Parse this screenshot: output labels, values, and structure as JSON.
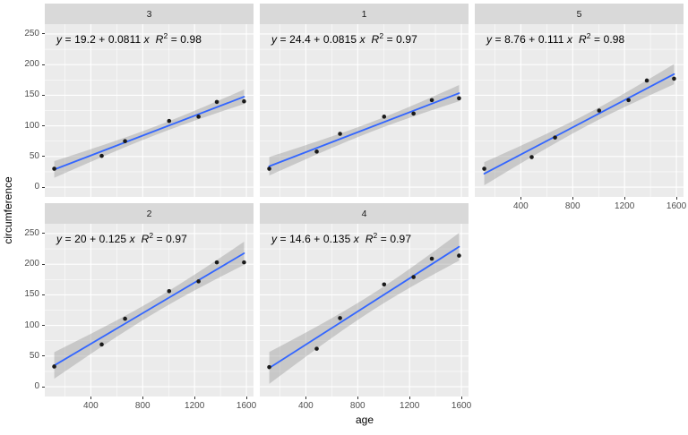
{
  "chart_data": {
    "type": "scatter",
    "title": "",
    "xlabel": "age",
    "ylabel": "circumference",
    "grid": true,
    "legend": "none",
    "smooth": {
      "method": "lm",
      "se": true,
      "ci_level": 0.95
    },
    "x": [
      118,
      484,
      664,
      1004,
      1231,
      1372,
      1582
    ],
    "xlim": [
      45,
      1655
    ],
    "ylim": [
      -16,
      266
    ],
    "x_ticks": [
      400,
      800,
      1200,
      1600
    ],
    "x_tick_labels": [
      "400",
      "800",
      "1200",
      "1600"
    ],
    "x_minor_ticks": [
      200,
      600,
      1000,
      1400
    ],
    "y_ticks": [
      0,
      50,
      100,
      150,
      200,
      250
    ],
    "y_tick_labels": [
      "0",
      "50",
      "100",
      "150",
      "200",
      "250"
    ],
    "y_minor_ticks": [
      25,
      75,
      125,
      175,
      225
    ],
    "facets": [
      {
        "label": "3",
        "row": 0,
        "col": 0,
        "values": [
          30,
          51,
          75,
          108,
          115,
          139,
          140
        ],
        "equation": {
          "intercept": "19.2",
          "slope": "0.0811",
          "r_squared": "0.98"
        },
        "eq_tokens": [
          [
            "i",
            "y"
          ],
          [
            "n",
            " = 19.2 + 0.0811 "
          ],
          [
            "i",
            "x"
          ],
          [
            "n",
            "  "
          ],
          [
            "i",
            "R"
          ],
          [
            "sup",
            "2"
          ],
          [
            "n",
            " = 0.98"
          ]
        ],
        "show_x_axis": false,
        "show_y_axis": true
      },
      {
        "label": "1",
        "row": 0,
        "col": 1,
        "values": [
          30,
          58,
          87,
          115,
          120,
          142,
          145
        ],
        "equation": {
          "intercept": "24.4",
          "slope": "0.0815",
          "r_squared": "0.97"
        },
        "eq_tokens": [
          [
            "i",
            "y"
          ],
          [
            "n",
            " = 24.4 + 0.0815 "
          ],
          [
            "i",
            "x"
          ],
          [
            "n",
            "  "
          ],
          [
            "i",
            "R"
          ],
          [
            "sup",
            "2"
          ],
          [
            "n",
            " = 0.97"
          ]
        ],
        "show_x_axis": false,
        "show_y_axis": false
      },
      {
        "label": "5",
        "row": 0,
        "col": 2,
        "values": [
          30,
          49,
          81,
          125,
          142,
          174,
          177
        ],
        "equation": {
          "intercept": "8.76",
          "slope": "0.111",
          "r_squared": "0.98"
        },
        "eq_tokens": [
          [
            "i",
            "y"
          ],
          [
            "n",
            " = 8.76 + 0.111 "
          ],
          [
            "i",
            "x"
          ],
          [
            "n",
            "  "
          ],
          [
            "i",
            "R"
          ],
          [
            "sup",
            "2"
          ],
          [
            "n",
            " = 0.98"
          ]
        ],
        "show_x_axis": true,
        "show_y_axis": false
      },
      {
        "label": "2",
        "row": 1,
        "col": 0,
        "values": [
          33,
          69,
          111,
          156,
          172,
          203,
          203
        ],
        "equation": {
          "intercept": "20",
          "slope": "0.125",
          "r_squared": "0.97"
        },
        "eq_tokens": [
          [
            "i",
            "y"
          ],
          [
            "n",
            " = 20 + 0.125 "
          ],
          [
            "i",
            "x"
          ],
          [
            "n",
            "  "
          ],
          [
            "i",
            "R"
          ],
          [
            "sup",
            "2"
          ],
          [
            "n",
            " = 0.97"
          ]
        ],
        "show_x_axis": true,
        "show_y_axis": true
      },
      {
        "label": "4",
        "row": 1,
        "col": 1,
        "values": [
          32,
          62,
          112,
          167,
          179,
          209,
          214
        ],
        "equation": {
          "intercept": "14.6",
          "slope": "0.135",
          "r_squared": "0.97"
        },
        "eq_tokens": [
          [
            "i",
            "y"
          ],
          [
            "n",
            " = 14.6 + 0.135 "
          ],
          [
            "i",
            "x"
          ],
          [
            "n",
            "  "
          ],
          [
            "i",
            "R"
          ],
          [
            "sup",
            "2"
          ],
          [
            "n",
            " = 0.97"
          ]
        ],
        "show_x_axis": true,
        "show_y_axis": false
      }
    ]
  },
  "colors": {
    "background": "#FFFFFF",
    "panel_background": "#EBEBEB",
    "strip_background": "#D9D9D9",
    "strip_text": "#1A1A1A",
    "gridline": "#FFFFFF",
    "regression_line": "#3366FF",
    "confidence_band": "#999999",
    "point": "#1A1A1A",
    "tick_text": "#4D4D4D",
    "tick_mark": "#333333",
    "axis_title_text": "#000000"
  }
}
